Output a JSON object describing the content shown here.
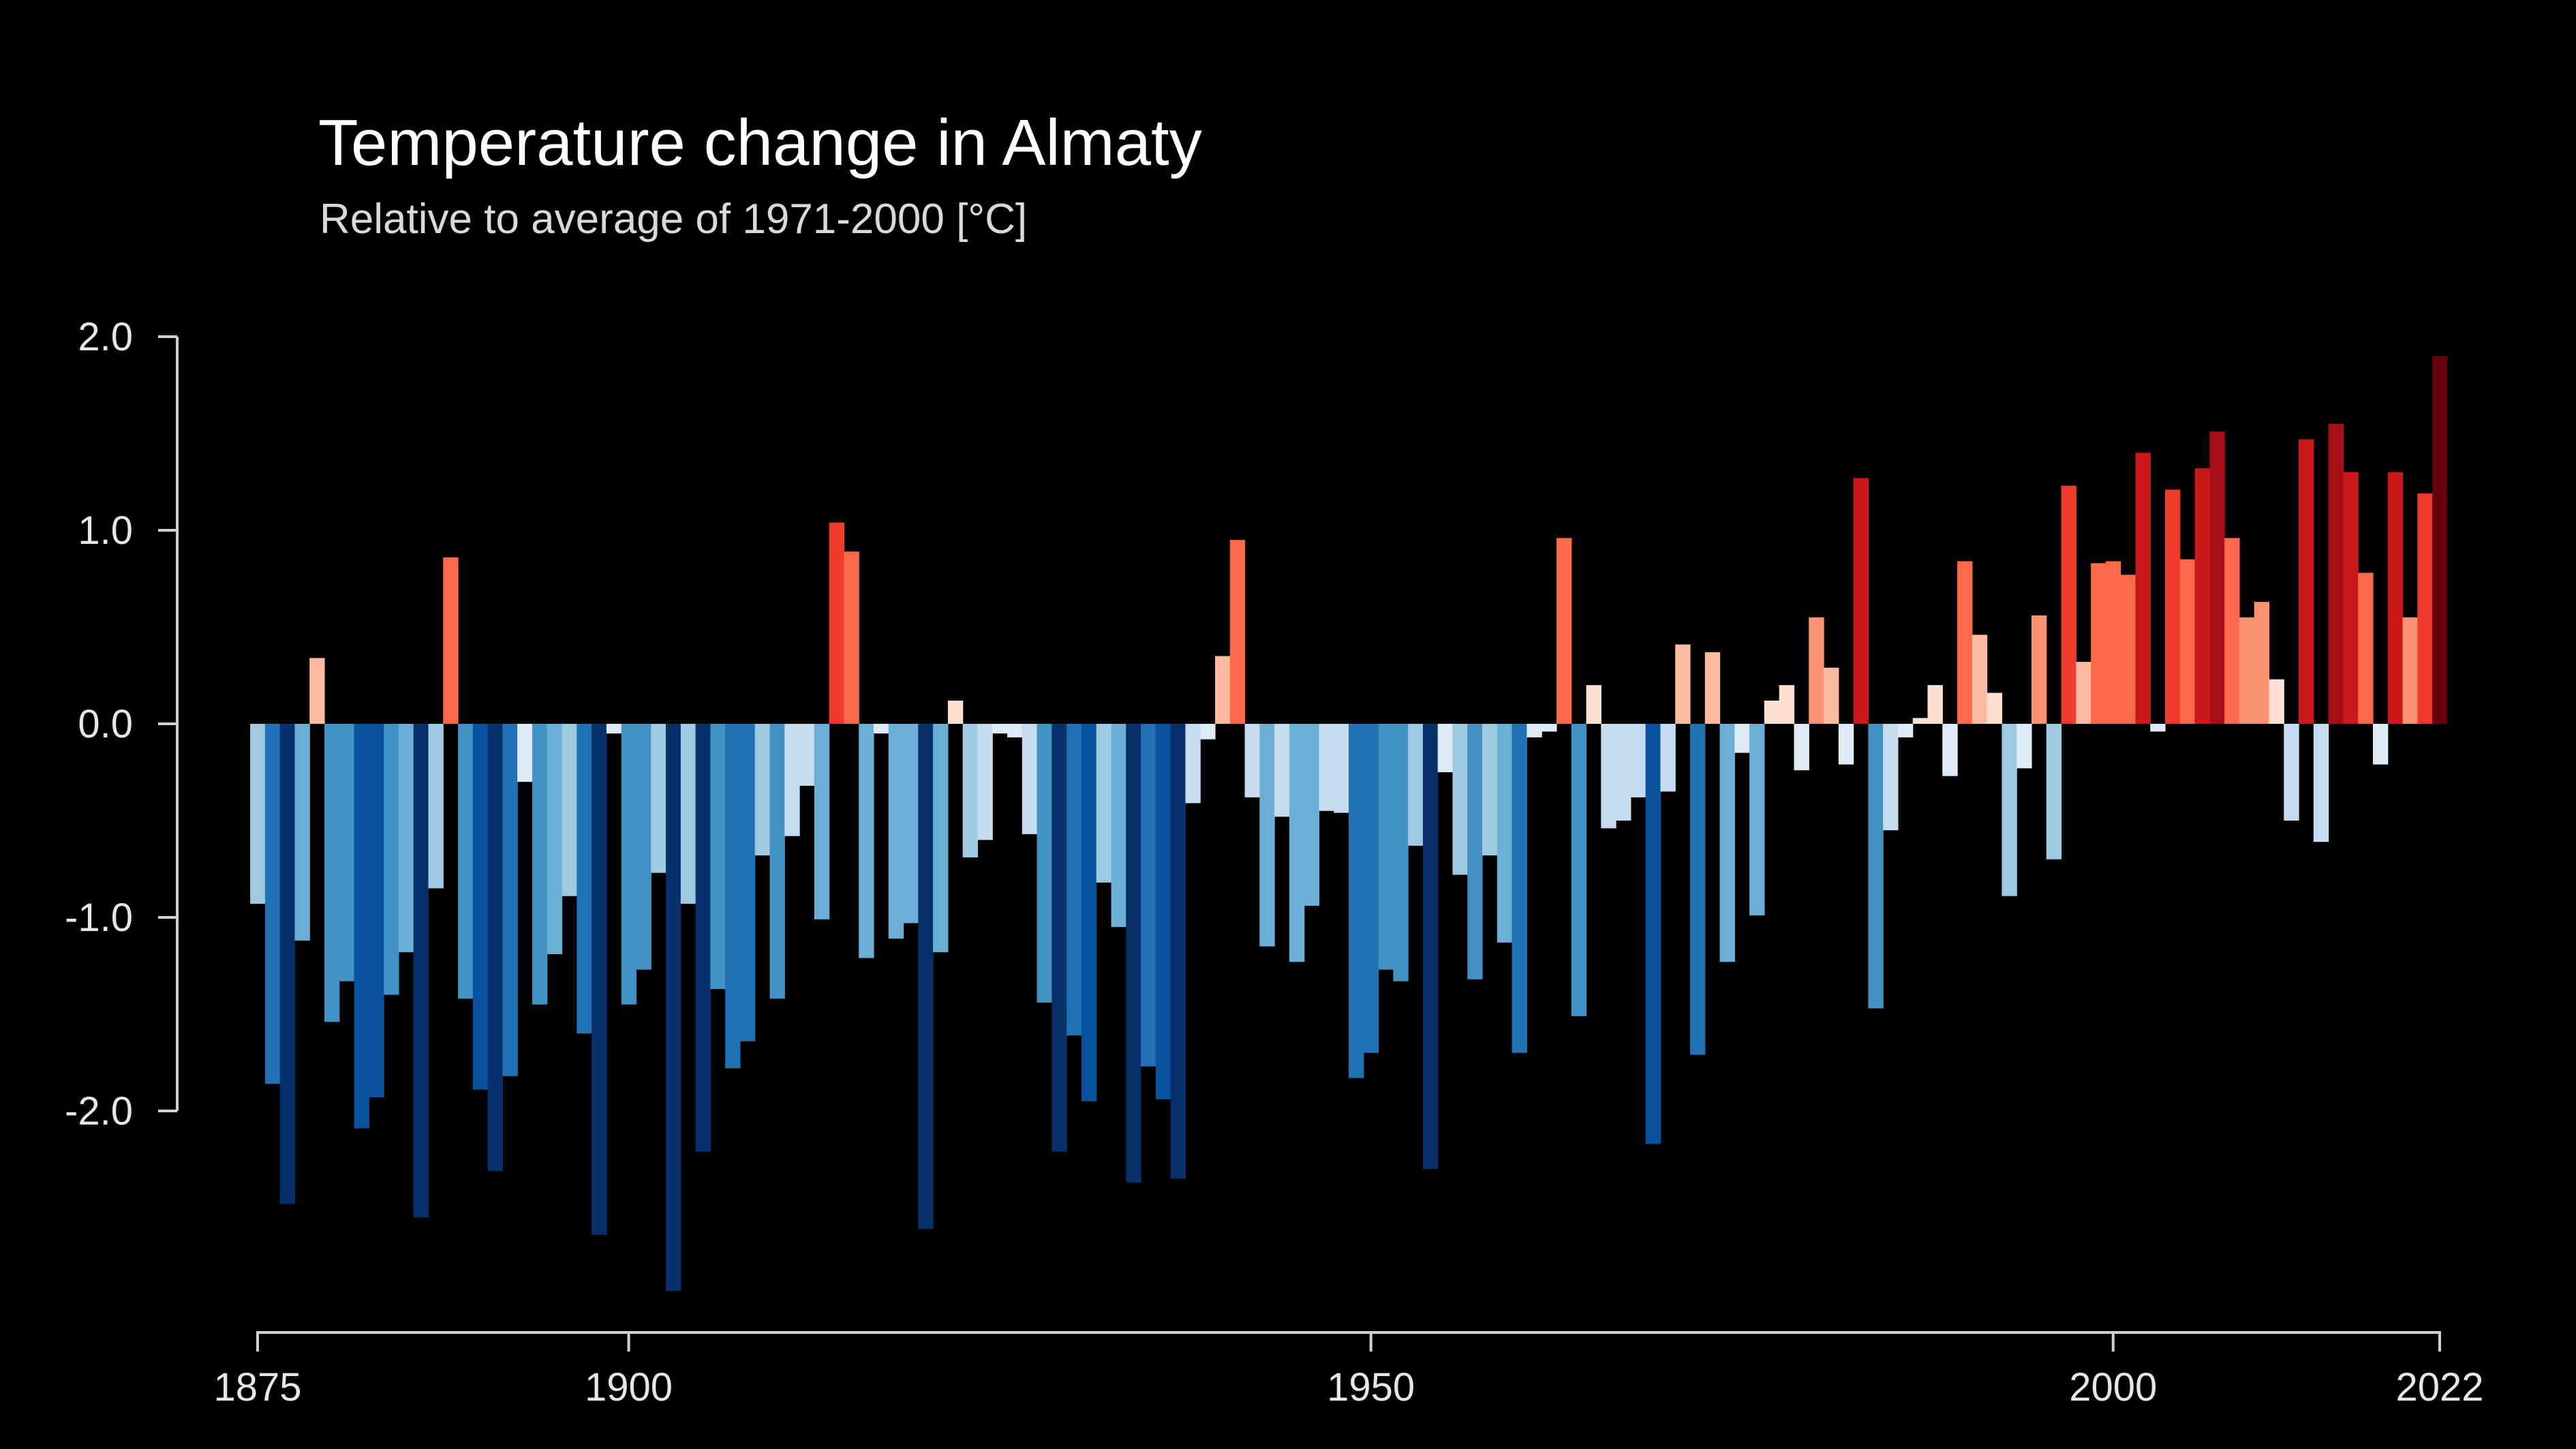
{
  "chart_data": {
    "type": "bar",
    "title": "Temperature change in Almaty",
    "subtitle": "Relative to average of 1971-2000  [°C]",
    "x_start": 1875,
    "x_end": 2022,
    "xlim": [
      1875,
      2022
    ],
    "ylim": [
      -3.0,
      2.0
    ],
    "y_ticks": [
      {
        "value": 2.0,
        "label": "2.0"
      },
      {
        "value": 1.0,
        "label": "1.0"
      },
      {
        "value": 0.0,
        "label": "0.0"
      },
      {
        "value": -1.0,
        "label": "-1.0"
      },
      {
        "value": -2.0,
        "label": "-2.0"
      }
    ],
    "x_ticks": [
      {
        "value": 1875,
        "label": "1875"
      },
      {
        "value": 1900,
        "label": "1900"
      },
      {
        "value": 1950,
        "label": "1950"
      },
      {
        "value": 2000,
        "label": "2000"
      },
      {
        "value": 2022,
        "label": "2022"
      }
    ],
    "values": [
      -0.93,
      -1.86,
      -2.48,
      -1.12,
      0.34,
      -1.54,
      -1.33,
      -2.09,
      -1.93,
      -1.4,
      -1.18,
      -2.55,
      -0.85,
      0.86,
      -1.42,
      -1.89,
      -2.31,
      -1.82,
      -0.3,
      -1.45,
      -1.19,
      -0.89,
      -1.6,
      -2.64,
      -0.05,
      -1.45,
      -1.27,
      -0.77,
      -2.93,
      -0.93,
      -2.21,
      -1.37,
      -1.78,
      -1.64,
      -0.68,
      -1.42,
      -0.58,
      -0.32,
      -1.01,
      1.04,
      0.89,
      -1.21,
      -0.05,
      -1.11,
      -1.03,
      -2.61,
      -1.18,
      0.12,
      -0.69,
      -0.6,
      -0.05,
      -0.07,
      -0.57,
      -1.44,
      -2.21,
      -1.61,
      -1.95,
      -0.82,
      -1.05,
      -2.37,
      -1.77,
      -1.94,
      -2.35,
      -0.41,
      -0.08,
      0.35,
      0.95,
      -0.38,
      -1.15,
      -0.48,
      -1.23,
      -0.94,
      -0.45,
      -0.46,
      -1.83,
      -1.7,
      -1.27,
      -1.33,
      -0.63,
      -2.3,
      -0.25,
      -0.78,
      -1.32,
      -0.68,
      -1.13,
      -1.7,
      -0.07,
      -0.04,
      0.96,
      -1.51,
      0.2,
      -0.54,
      -0.5,
      -0.38,
      -2.17,
      -0.35,
      0.41,
      -1.71,
      0.37,
      -1.23,
      -0.15,
      -0.99,
      0.12,
      0.2,
      -0.24,
      0.55,
      0.29,
      -0.21,
      1.27,
      -1.47,
      -0.55,
      -0.07,
      0.03,
      0.2,
      -0.27,
      0.84,
      0.46,
      0.16,
      -0.89,
      -0.23,
      0.56,
      -0.7,
      1.23,
      0.32,
      0.83,
      0.84,
      0.77,
      1.4,
      -0.04,
      1.21,
      0.85,
      1.32,
      1.51,
      0.96,
      0.55,
      0.63,
      0.23,
      -0.5,
      1.47,
      -0.61,
      1.55,
      1.3,
      0.78,
      -0.21,
      1.3,
      0.55,
      1.19,
      1.9
    ],
    "color_scale": {
      "scale_min": -2.5,
      "scale_max": 2.0,
      "negative_colors": [
        "#deebf7",
        "#c6dbef",
        "#9ecae1",
        "#6baed6",
        "#4292c6",
        "#2171b5",
        "#08519c",
        "#08306b"
      ],
      "positive_colors": [
        "#fee0d2",
        "#fcbba1",
        "#fc9272",
        "#fb6a4a",
        "#ef3b2c",
        "#cb181d",
        "#a50f15",
        "#67000d"
      ]
    },
    "axis_color": "#cfcfcf",
    "background": "#000000"
  }
}
